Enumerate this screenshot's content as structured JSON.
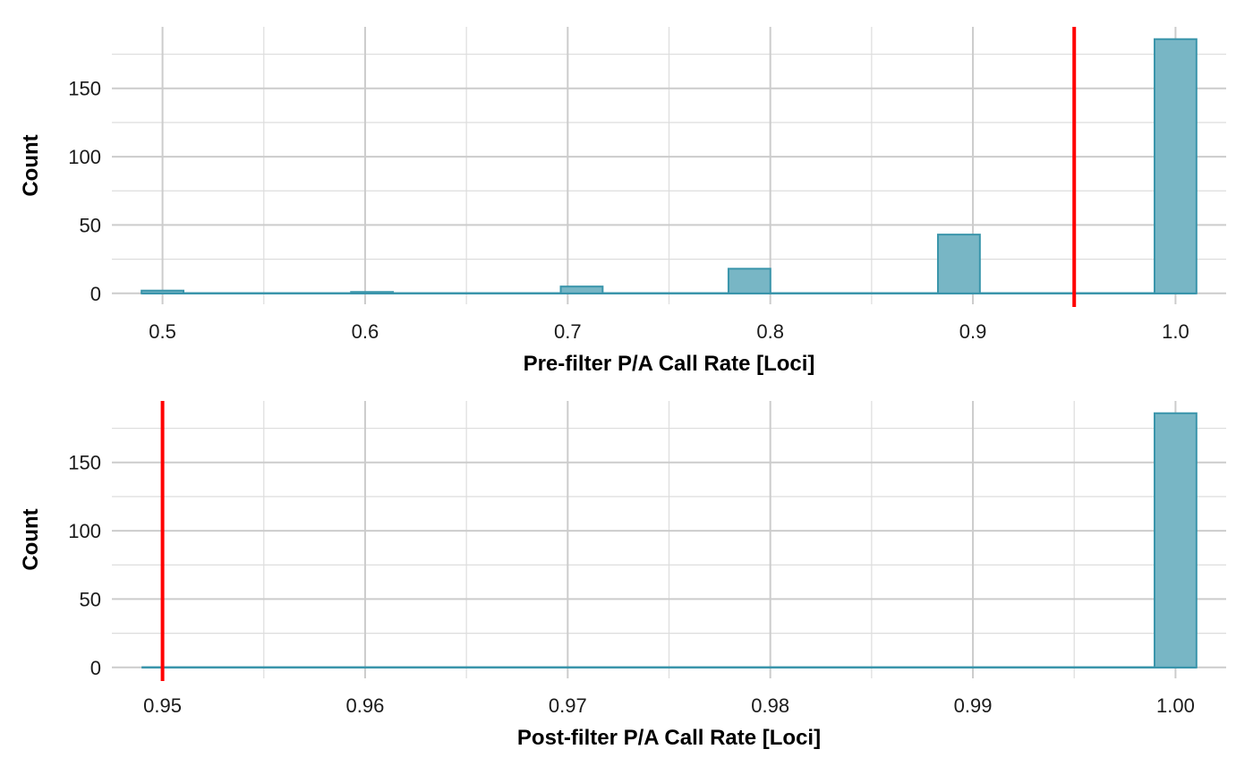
{
  "colors": {
    "bar_fill": "#78b6c5",
    "bar_stroke": "#3a95ab",
    "threshold": "#ff0000",
    "grid_major": "#cccccc",
    "grid_minor": "#dddddd"
  },
  "chart_data": [
    {
      "type": "histogram",
      "title": "",
      "xlabel": "Pre-filter P/A Call Rate [Loci]",
      "ylabel": "Count",
      "xlim": [
        0.475,
        1.025
      ],
      "ylim": [
        -8,
        195
      ],
      "x_ticks": [
        "0.5",
        "0.6",
        "0.7",
        "0.8",
        "0.9",
        "1.0"
      ],
      "x_tick_values": [
        0.5,
        0.6,
        0.7,
        0.8,
        0.9,
        1.0
      ],
      "y_ticks": [
        "0",
        "50",
        "100",
        "150"
      ],
      "y_tick_values": [
        0,
        50,
        100,
        150
      ],
      "grid": true,
      "bin_width": 0.02069,
      "bins": [
        {
          "x": 0.5,
          "count": 2
        },
        {
          "x": 0.6034,
          "count": 1
        },
        {
          "x": 0.7069,
          "count": 5
        },
        {
          "x": 0.7897,
          "count": 18
        },
        {
          "x": 0.8931,
          "count": 43
        },
        {
          "x": 1.0,
          "count": 186
        }
      ],
      "threshold_x": 0.95
    },
    {
      "type": "histogram",
      "title": "",
      "xlabel": "Post-filter P/A Call Rate [Loci]",
      "ylabel": "Count",
      "xlim": [
        0.9475,
        1.0025
      ],
      "ylim": [
        -8,
        195
      ],
      "x_ticks": [
        "0.95",
        "0.96",
        "0.97",
        "0.98",
        "0.99",
        "1.00"
      ],
      "x_tick_values": [
        0.95,
        0.96,
        0.97,
        0.98,
        0.99,
        1.0
      ],
      "y_ticks": [
        "0",
        "50",
        "100",
        "150"
      ],
      "y_tick_values": [
        0,
        50,
        100,
        150
      ],
      "grid": true,
      "bin_width": 0.002069,
      "bins": [
        {
          "x": 1.0,
          "count": 186
        }
      ],
      "threshold_x": 0.95
    }
  ]
}
